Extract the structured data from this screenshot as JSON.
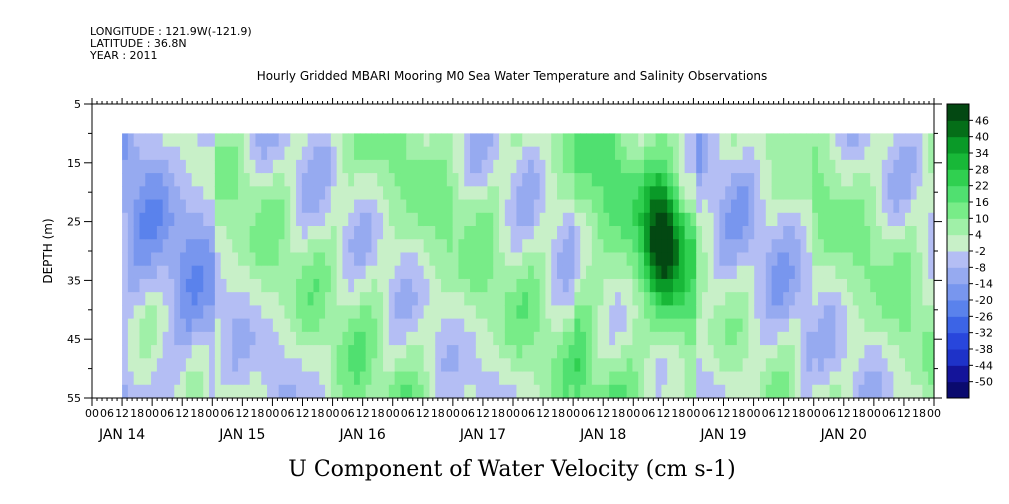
{
  "header": {
    "longitude": "LONGITUDE : 121.9W(-121.9)",
    "latitude": "LATITUDE : 36.8N",
    "year": "YEAR : 2011"
  },
  "chart_data": {
    "type": "heatmap",
    "title": "Hourly Gridded MBARI Mooring M0 Sea Water Temperature and Salinity Observations",
    "xlabel": "U Component of Water Velocity (cm s-1)",
    "ylabel": "DEPTH (m)",
    "ylim": [
      55,
      5
    ],
    "y_ticks": [
      5,
      15,
      25,
      35,
      45,
      55
    ],
    "data_depth_range": [
      10,
      55
    ],
    "x_hour_labels": [
      "00",
      "06",
      "12",
      "18",
      "00",
      "06",
      "12",
      "18",
      "00",
      "06",
      "12",
      "18",
      "00",
      "06",
      "12",
      "18",
      "00",
      "06",
      "12",
      "18",
      "00",
      "06",
      "12",
      "18",
      "00",
      "06",
      "12",
      "18",
      "00",
      "06",
      "12",
      "18",
      "00",
      "06",
      "12",
      "18",
      "00",
      "06",
      "12",
      "18",
      "00",
      "06",
      "12",
      "18",
      "00",
      "06",
      "12",
      "18",
      "00",
      "06",
      "12",
      "18",
      "00",
      "06",
      "12",
      "18",
      "00"
    ],
    "x_day_labels": [
      "JAN 14",
      "JAN 15",
      "JAN 16",
      "JAN 17",
      "JAN 18",
      "JAN 19",
      "JAN 20"
    ],
    "data_time_start": "JAN 14 06",
    "data_time_end": "JAN 20 24",
    "colorbar": {
      "levels": [
        -50,
        -44,
        -38,
        -32,
        -26,
        -20,
        -14,
        -8,
        -2,
        4,
        10,
        16,
        22,
        28,
        34,
        40,
        46
      ],
      "colors": [
        "#0a0a6e",
        "#14149a",
        "#1e32c8",
        "#2846dc",
        "#3c64e6",
        "#5a82ec",
        "#7896ee",
        "#96aaf0",
        "#b4bef4",
        "#c8f0c8",
        "#a0f0a8",
        "#78ec88",
        "#50e070",
        "#30d050",
        "#18b838",
        "#0a9a28",
        "#056e18",
        "#034812"
      ]
    },
    "day_means": [
      -8,
      2,
      4,
      3,
      10,
      -2,
      3
    ],
    "hotspot": {
      "time": "JAN 18 18",
      "depth": 28,
      "value": 48
    }
  }
}
